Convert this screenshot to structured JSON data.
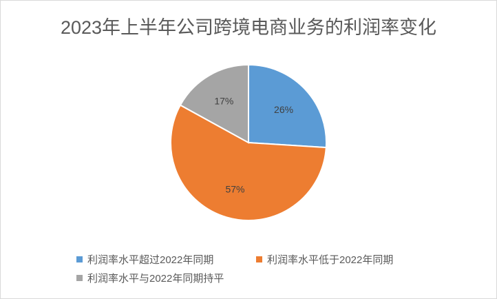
{
  "chart_data": {
    "type": "pie",
    "title": "2023年上半年公司跨境电商业务的利润率变化",
    "categories": [
      "利润率水平超过2022年同期",
      "利润率水平低于2022年同期",
      "利润率水平与2022年同期持平"
    ],
    "values": [
      26,
      57,
      17
    ],
    "labels": [
      "26%",
      "57%",
      "17%"
    ],
    "colors": [
      "#5b9bd5",
      "#ed7d31",
      "#a5a5a5"
    ],
    "legend_position": "bottom"
  }
}
